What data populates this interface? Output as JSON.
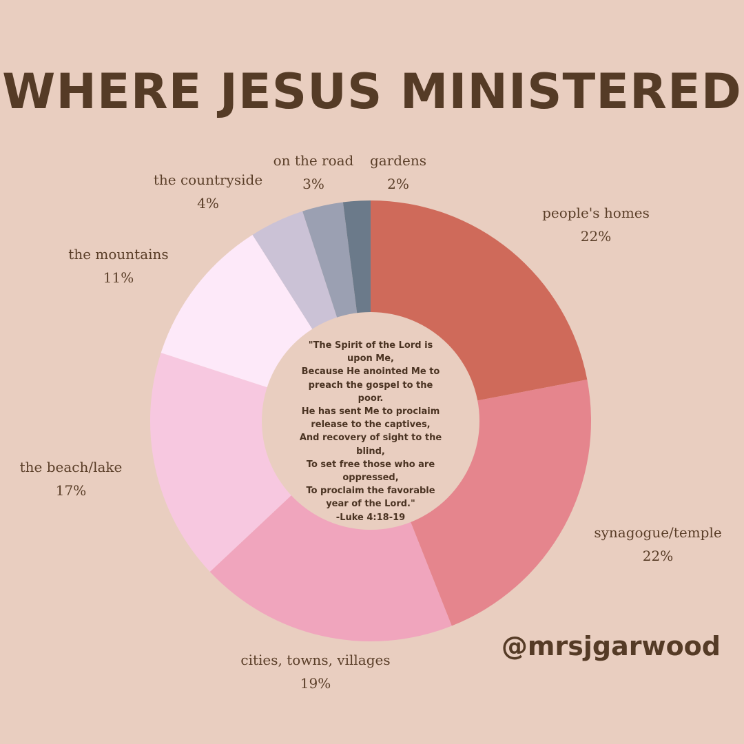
{
  "chart_data": {
    "type": "pie",
    "title": "WHERE JESUS MINISTERED",
    "donut": true,
    "start": "top, clockwise",
    "slices": [
      {
        "label": "people's homes",
        "pct_label": "22%",
        "value": 22,
        "color": "#cf6a5a"
      },
      {
        "label": "synagogue/temple",
        "pct_label": "22%",
        "value": 22,
        "color": "#e5858d"
      },
      {
        "label": "cities, towns, villages",
        "pct_label": "19%",
        "value": 19,
        "color": "#f0a5bd"
      },
      {
        "label": "the beach/lake",
        "pct_label": "17%",
        "value": 17,
        "color": "#f7c8e0"
      },
      {
        "label": "the mountains",
        "pct_label": "11%",
        "value": 11,
        "color": "#fde9f9"
      },
      {
        "label": "the countryside",
        "pct_label": "4%",
        "value": 4,
        "color": "#cbc2d6"
      },
      {
        "label": "on the road",
        "pct_label": "3%",
        "value": 3,
        "color": "#9ba0b2"
      },
      {
        "label": "gardens",
        "pct_label": "2%",
        "value": 2,
        "color": "#6b7a8a"
      }
    ]
  },
  "center_quote": [
    "\"The Spirit of the Lord is",
    "upon Me,",
    "Because He anointed Me to",
    "preach the gospel to the",
    "poor.",
    "He has sent Me to proclaim",
    "release to the captives,",
    "And recovery of sight to the",
    "blind,",
    "To set free those who are",
    "oppressed,",
    "To proclaim the favorable",
    "year of the Lord.\"",
    "-Luke 4:18-19"
  ],
  "handle": "@mrsjgarwood",
  "colors": {
    "background": "#e9cec0",
    "text": "#553b26",
    "hole": "#e9cec0"
  }
}
